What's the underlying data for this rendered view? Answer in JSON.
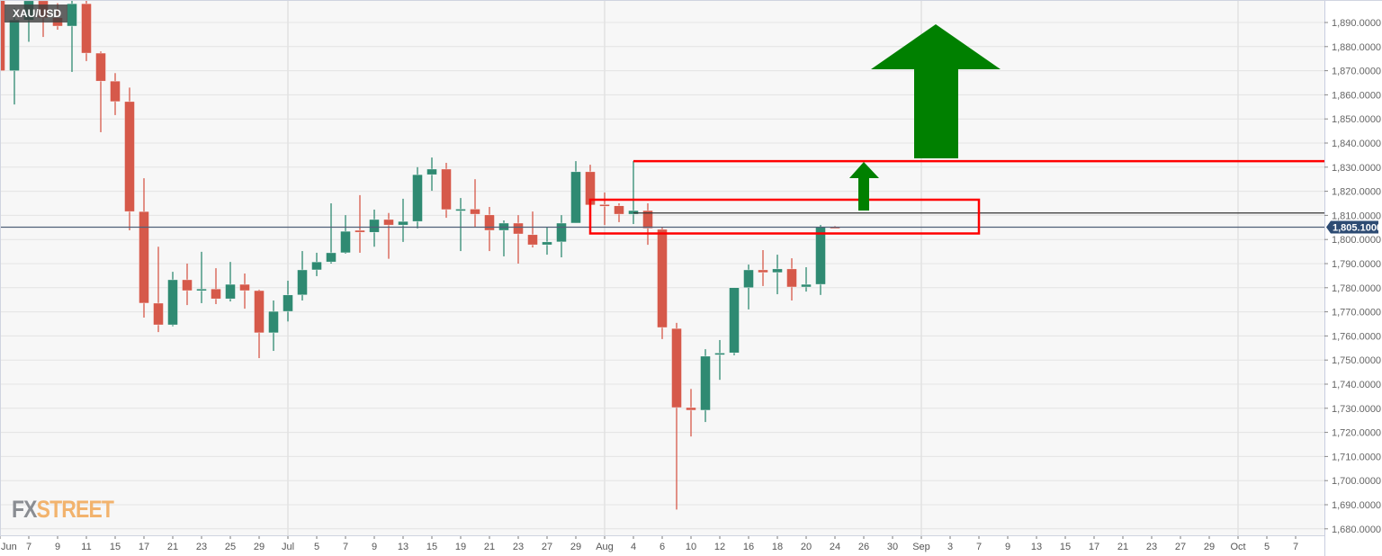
{
  "symbol": "XAU/USD",
  "logo": {
    "part1": "FX",
    "part2": "STREET"
  },
  "colors": {
    "up": "#2f8a72",
    "down": "#d6594a",
    "annotation": "#ff0000",
    "arrow": "#008000",
    "price_tag": "#2d4b73",
    "background": "#f7f7f7",
    "grid": "#e4e4e4"
  },
  "chart_data": {
    "type": "candlestick",
    "title": "XAU/USD",
    "ylim": [
      1680,
      1890
    ],
    "grid": true,
    "y_ticks": [
      "1,890.0000",
      "1,880.0000",
      "1,870.0000",
      "1,860.0000",
      "1,850.0000",
      "1,840.0000",
      "1,830.0000",
      "1,820.0000",
      "1,810.0000",
      "1,800.0000",
      "1,790.0000",
      "1,780.0000",
      "1,770.0000",
      "1,760.0000",
      "1,750.0000",
      "1,740.0000",
      "1,730.0000",
      "1,720.0000",
      "1,710.0000",
      "1,700.0000",
      "1,690.0000",
      "1,680.0000"
    ],
    "y_tick_values": [
      1890,
      1880,
      1870,
      1860,
      1850,
      1840,
      1830,
      1820,
      1810,
      1800,
      1790,
      1780,
      1770,
      1760,
      1750,
      1740,
      1730,
      1720,
      1710,
      1700,
      1690,
      1680
    ],
    "x_ticks": [
      "Jun",
      "7",
      "9",
      "11",
      "15",
      "17",
      "21",
      "23",
      "25",
      "29",
      "Jul",
      "5",
      "7",
      "9",
      "13",
      "15",
      "19",
      "21",
      "23",
      "27",
      "29",
      "Aug",
      "4",
      "6",
      "10",
      "12",
      "16",
      "18",
      "20",
      "24",
      "26",
      "30",
      "Sep",
      "3",
      "7",
      "9",
      "13",
      "15",
      "17",
      "21",
      "23",
      "27",
      "29",
      "Oct",
      "5",
      "7"
    ],
    "current_price": {
      "value": 1805.1,
      "label": "1,805.1000"
    },
    "candles_fields": [
      "date",
      "open",
      "high",
      "low",
      "close"
    ],
    "candles": [
      [
        "Jun 3",
        1909,
        1916,
        1865,
        1870
      ],
      [
        "Jun 4",
        1870,
        1896,
        1856,
        1891
      ],
      [
        "Jun 7",
        1891,
        1903,
        1882,
        1899
      ],
      [
        "Jun 8",
        1899,
        1903,
        1884,
        1892
      ],
      [
        "Jun 9",
        1892,
        1898,
        1887,
        1888.5
      ],
      [
        "Jun 10",
        1888.5,
        1903,
        1869.5,
        1897.8
      ],
      [
        "Jun 11",
        1897.8,
        1900,
        1874,
        1877.3
      ],
      [
        "Jun 14",
        1877.3,
        1878,
        1844.5,
        1865.7
      ],
      [
        "Jun 15",
        1865.7,
        1869,
        1851.6,
        1857.2
      ],
      [
        "Jun 16",
        1857.2,
        1863,
        1803.8,
        1811.6
      ],
      [
        "Jun 17",
        1811.6,
        1825.4,
        1767.6,
        1773.6
      ],
      [
        "Jun 18",
        1773.6,
        1797,
        1761.6,
        1764.6
      ],
      [
        "Jun 21",
        1764.6,
        1786.6,
        1764,
        1783.3
      ],
      [
        "Jun 22",
        1783.3,
        1790,
        1772.8,
        1778.8
      ],
      [
        "Jun 23",
        1778.8,
        1794.9,
        1773.6,
        1779.5
      ],
      [
        "Jun 24",
        1779.5,
        1788.1,
        1773.2,
        1775.4
      ],
      [
        "Jun 25",
        1775.4,
        1790.7,
        1774.3,
        1781.4
      ],
      [
        "Jun 28",
        1781.4,
        1785.9,
        1771.3,
        1778.8
      ],
      [
        "Jun 29",
        1778.8,
        1779.2,
        1750.8,
        1761.3
      ],
      [
        "Jun 30",
        1761.3,
        1774.7,
        1753.8,
        1770.2
      ],
      [
        "Jul 1",
        1770.2,
        1782.9,
        1766,
        1777
      ],
      [
        "Jul 2",
        1777,
        1795.2,
        1774.7,
        1787.4
      ],
      [
        "Jul 5",
        1787.4,
        1794.5,
        1784.8,
        1790.7
      ],
      [
        "Jul 6",
        1790.7,
        1815,
        1790,
        1794.5
      ],
      [
        "Jul 7",
        1794.5,
        1810.1,
        1794.1,
        1803.4
      ],
      [
        "Jul 8",
        1803.8,
        1818.4,
        1794.5,
        1803
      ],
      [
        "Jul 9",
        1803,
        1812.4,
        1797,
        1808.3
      ],
      [
        "Jul 12",
        1808.3,
        1811,
        1792,
        1806
      ],
      [
        "Jul 13",
        1806,
        1816.9,
        1799,
        1807.5
      ],
      [
        "Jul 14",
        1807.5,
        1830,
        1804.6,
        1826.9
      ],
      [
        "Jul 15",
        1826.9,
        1834,
        1820.2,
        1829.2
      ],
      [
        "Jul 16",
        1829.2,
        1831.8,
        1809,
        1812.4
      ],
      [
        "Jul 19",
        1812.4,
        1817.2,
        1795.2,
        1812.6
      ],
      [
        "Jul 20",
        1812.6,
        1825,
        1805,
        1810.5
      ],
      [
        "Jul 21",
        1810.2,
        1813.5,
        1795.2,
        1803.8
      ],
      [
        "Jul 22",
        1803.8,
        1807.9,
        1793,
        1806.8
      ],
      [
        "Jul 23",
        1806.8,
        1810.1,
        1790,
        1802.3
      ],
      [
        "Jul 26",
        1802,
        1811.6,
        1796.7,
        1797.8
      ],
      [
        "Jul 27",
        1797.8,
        1805.3,
        1793.7,
        1799
      ],
      [
        "Jul 28",
        1799,
        1810.1,
        1792.6,
        1806.8
      ],
      [
        "Jul 29",
        1806.8,
        1832.5,
        1806.8,
        1828.1
      ],
      [
        "Jul 30",
        1828.1,
        1831,
        1814.3,
        1814.3
      ],
      [
        "Aug 2",
        1814.5,
        1819.5,
        1806,
        1814
      ],
      [
        "Aug 3",
        1814,
        1815,
        1807.2,
        1810.5
      ],
      [
        "Aug 4",
        1810.5,
        1832.5,
        1806.4,
        1812
      ],
      [
        "Aug 5",
        1812,
        1815,
        1797.8,
        1804.6
      ],
      [
        "Aug 6",
        1804.2,
        1805.3,
        1758.7,
        1763.5
      ],
      [
        "Aug 9",
        1763.1,
        1765.4,
        1688,
        1730.3
      ],
      [
        "Aug 10",
        1730.3,
        1738,
        1718.3,
        1729.2
      ],
      [
        "Aug 11",
        1729.2,
        1754.5,
        1724.3,
        1751.6
      ],
      [
        "Aug 12",
        1752.2,
        1758.3,
        1741.8,
        1752.9
      ],
      [
        "Aug 13",
        1753,
        1780,
        1752,
        1780
      ],
      [
        "Aug 16",
        1780,
        1789.6,
        1771,
        1787.4
      ],
      [
        "Aug 17",
        1787.4,
        1795.6,
        1780.7,
        1786.3
      ],
      [
        "Aug 18",
        1786.3,
        1793.7,
        1777.3,
        1787.8
      ],
      [
        "Aug 19",
        1787.8,
        1792.2,
        1774.7,
        1780.3
      ],
      [
        "Aug 20",
        1780.3,
        1788.5,
        1778.4,
        1781.4
      ],
      [
        "Aug 23",
        1781.4,
        1806,
        1777,
        1805.1
      ],
      [
        "Aug 24",
        1805.3,
        1805.6,
        1805,
        1805.1
      ]
    ],
    "annotations": {
      "resistance_line": {
        "price": 1832.5,
        "from": "Aug 4",
        "color": "#ff0000"
      },
      "horizontal_line": {
        "price": 1811,
        "from": "Aug 4",
        "color": "#333333"
      },
      "zone_rectangle": {
        "top": 1816.5,
        "bottom": 1802.5,
        "from": "Jul 30",
        "color": "#ff0000"
      },
      "arrows": [
        {
          "direction": "up",
          "size": "small",
          "color": "#008000"
        },
        {
          "direction": "up",
          "size": "large",
          "color": "#008000"
        }
      ]
    }
  }
}
